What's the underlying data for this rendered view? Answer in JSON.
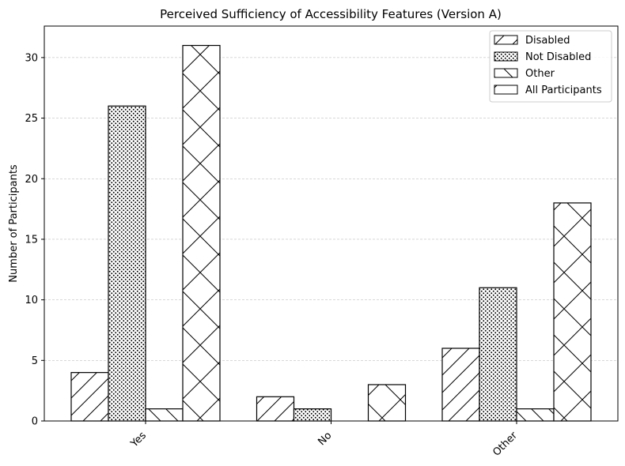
{
  "chart_data": {
    "type": "bar",
    "title": "Perceived Sufficiency of Accessibility Features (Version A)",
    "xlabel": "",
    "ylabel": "Number of Participants",
    "categories": [
      "Yes",
      "No",
      "Other"
    ],
    "ylim": [
      0,
      32.6
    ],
    "yticks": [
      0,
      5,
      10,
      15,
      20,
      25,
      30
    ],
    "grid": "y-dashed",
    "legend_position": "top-right",
    "series": [
      {
        "name": "Disabled",
        "values": [
          4,
          2,
          6
        ],
        "hatch": "diagonal-forward"
      },
      {
        "name": "Not Disabled",
        "values": [
          26,
          1,
          11
        ],
        "hatch": "dots"
      },
      {
        "name": "Other",
        "values": [
          1,
          0,
          1
        ],
        "hatch": "diagonal-back"
      },
      {
        "name": "All Participants",
        "values": [
          31,
          3,
          18
        ],
        "hatch": "cross"
      }
    ],
    "colors": {
      "bar_fill": "#ffffff",
      "bar_edge": "#000000",
      "grid": "#b0b0b0"
    }
  }
}
